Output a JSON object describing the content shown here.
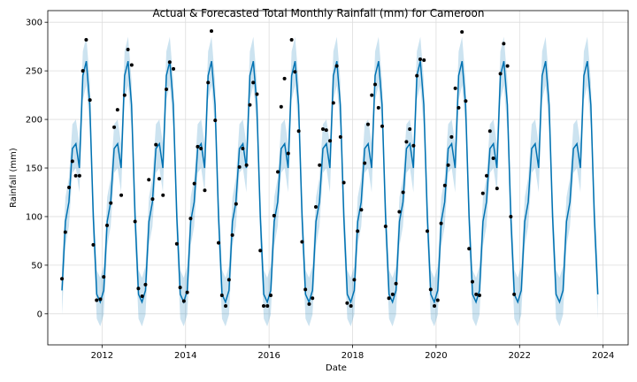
{
  "chart_data": {
    "type": "line",
    "title": "Actual & Forecasted Total Monthly Rainfall (mm) for Cameroon",
    "xlabel": "Date",
    "ylabel": "Rainfall (mm)",
    "xlim": [
      2010.7,
      2024.6
    ],
    "ylim": [
      -32,
      312
    ],
    "xticks": [
      2012,
      2014,
      2016,
      2018,
      2020,
      2022,
      2024
    ],
    "yticks": [
      0,
      50,
      100,
      150,
      200,
      250,
      300
    ],
    "grid": true,
    "forecast_start": 2011.04,
    "forecast_months": 155,
    "uncertainty_half_width": 25,
    "monthly_profile": [
      24,
      95,
      115,
      170,
      175,
      150,
      245,
      260,
      215,
      100,
      20,
      12
    ],
    "colors": {
      "line": "#0072B2",
      "band": "#0072B2",
      "points": "#000000",
      "grid": "#dddddd"
    },
    "series": [
      {
        "name": "Actual",
        "x": [
          2011.04,
          2011.12,
          2011.21,
          2011.29,
          2011.37,
          2011.46,
          2011.54,
          2011.62,
          2011.71,
          2011.79,
          2011.87,
          2011.96,
          2012.04,
          2012.12,
          2012.21,
          2012.29,
          2012.37,
          2012.46,
          2012.54,
          2012.62,
          2012.71,
          2012.79,
          2012.87,
          2012.96,
          2013.04,
          2013.12,
          2013.21,
          2013.29,
          2013.37,
          2013.46,
          2013.54,
          2013.62,
          2013.71,
          2013.79,
          2013.87,
          2013.96,
          2014.04,
          2014.12,
          2014.21,
          2014.29,
          2014.37,
          2014.46,
          2014.54,
          2014.62,
          2014.71,
          2014.79,
          2014.87,
          2014.96,
          2015.04,
          2015.12,
          2015.21,
          2015.29,
          2015.37,
          2015.46,
          2015.54,
          2015.62,
          2015.71,
          2015.79,
          2015.87,
          2015.96,
          2016.04,
          2016.12,
          2016.21,
          2016.29,
          2016.37,
          2016.46,
          2016.54,
          2016.62,
          2016.71,
          2016.79,
          2016.87,
          2016.96,
          2017.04,
          2017.12,
          2017.21,
          2017.29,
          2017.37,
          2017.46,
          2017.54,
          2017.62,
          2017.71,
          2017.79,
          2017.87,
          2017.96,
          2018.04,
          2018.12,
          2018.21,
          2018.29,
          2018.37,
          2018.46,
          2018.54,
          2018.62,
          2018.71,
          2018.79,
          2018.87,
          2018.96,
          2019.04,
          2019.12,
          2019.21,
          2019.29,
          2019.37,
          2019.46,
          2019.54,
          2019.62,
          2019.71,
          2019.79,
          2019.87,
          2019.96,
          2020.04,
          2020.12,
          2020.21,
          2020.29,
          2020.37,
          2020.46,
          2020.54,
          2020.62,
          2020.71,
          2020.79,
          2020.87,
          2020.96,
          2021.04,
          2021.12,
          2021.21,
          2021.29,
          2021.37,
          2021.46,
          2021.54,
          2021.62,
          2021.71,
          2021.79,
          2021.87
        ],
        "y": [
          36,
          84,
          130,
          157,
          142,
          142,
          250,
          282,
          220,
          71,
          14,
          15,
          38,
          91,
          114,
          192,
          210,
          122,
          225,
          272,
          256,
          95,
          26,
          18,
          30,
          138,
          118,
          174,
          139,
          122,
          231,
          259,
          252,
          72,
          27,
          13,
          22,
          98,
          134,
          172,
          170,
          127,
          238,
          291,
          199,
          73,
          19,
          8,
          35,
          81,
          113,
          151,
          170,
          153,
          215,
          238,
          226,
          65,
          8,
          8,
          19,
          101,
          146,
          213,
          242,
          165,
          282,
          249,
          188,
          74,
          25,
          10,
          16,
          110,
          153,
          190,
          189,
          178,
          217,
          255,
          182,
          135,
          11,
          8,
          35,
          85,
          107,
          155,
          195,
          225,
          236,
          212,
          193,
          90,
          16,
          20,
          31,
          105,
          125,
          177,
          190,
          173,
          245,
          262,
          261,
          85,
          25,
          8,
          14,
          93,
          132,
          153,
          182,
          232,
          212,
          290,
          219,
          67,
          33,
          20,
          19,
          124,
          142,
          188,
          160,
          129,
          247,
          278,
          255,
          100,
          20
        ]
      },
      {
        "name": "Forecast",
        "description": "yhat with uncertainty interval"
      }
    ]
  }
}
